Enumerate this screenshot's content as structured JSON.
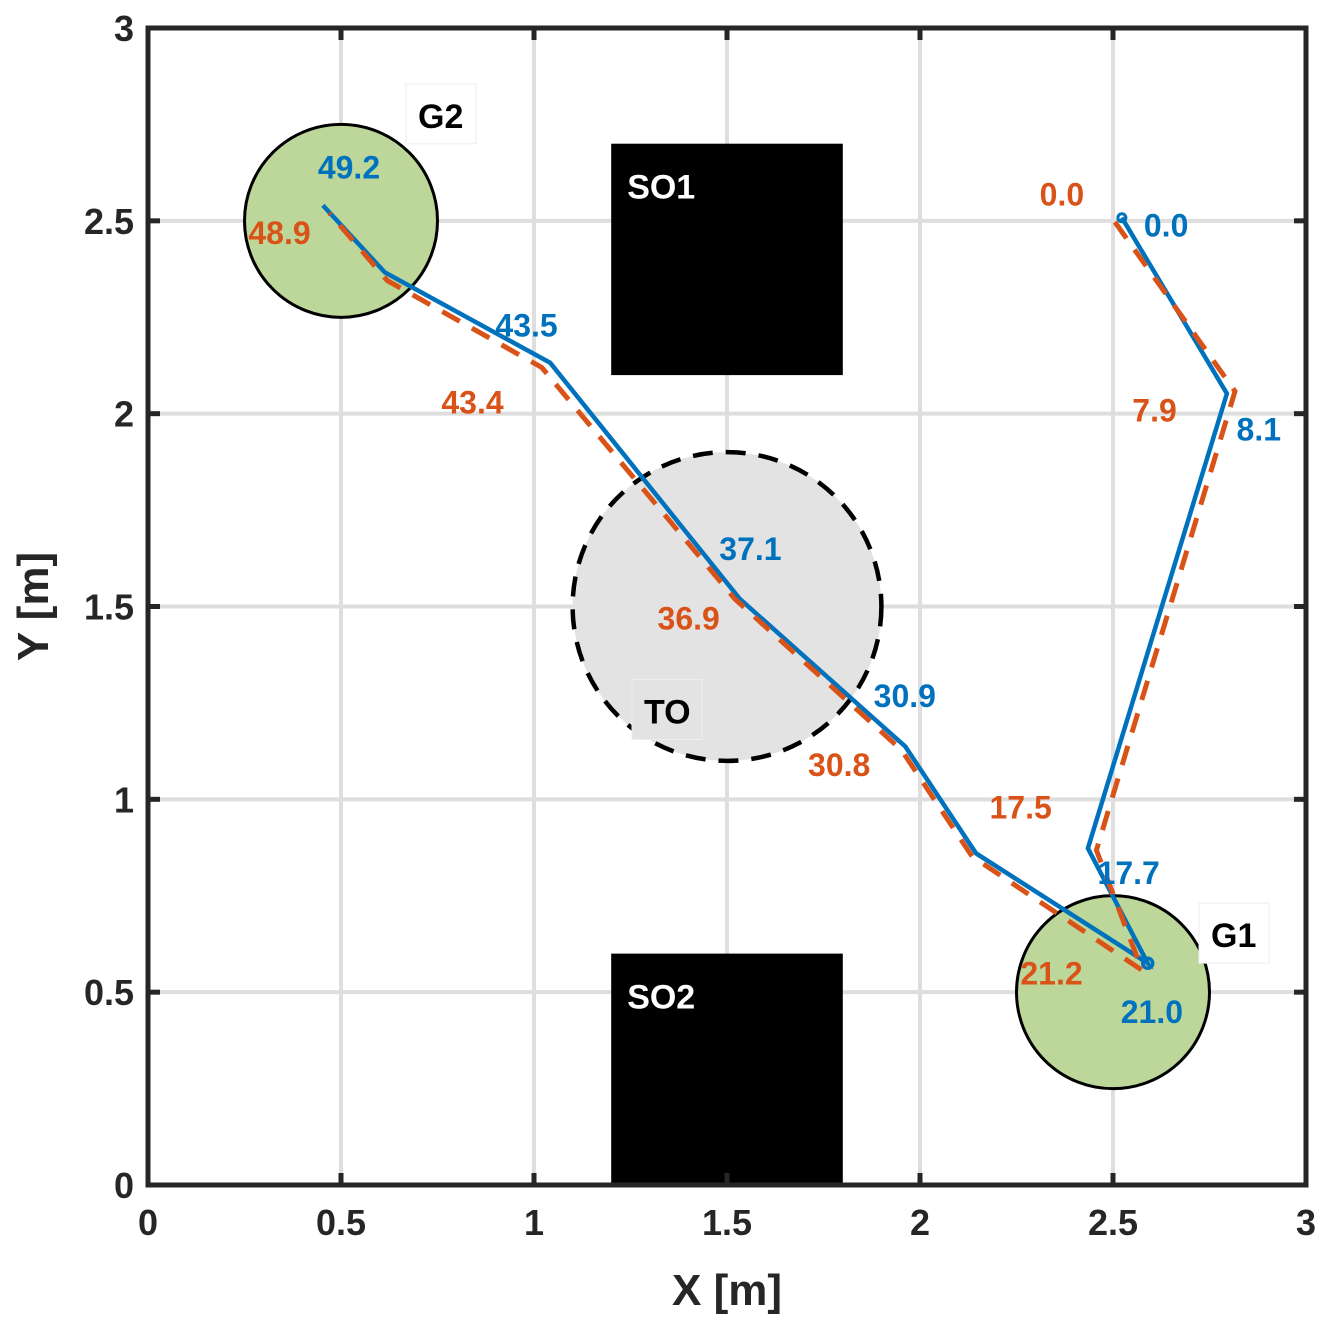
{
  "chart_data": {
    "type": "line",
    "title": "",
    "xlabel": "X [m]",
    "ylabel": "Y [m]",
    "xlim": [
      0,
      3
    ],
    "ylim": [
      0,
      3
    ],
    "grid": true,
    "xticks": [
      0,
      0.5,
      1,
      1.5,
      2,
      2.5,
      3
    ],
    "yticks": [
      0,
      0.5,
      1,
      1.5,
      2,
      2.5,
      3
    ],
    "xtick_labels": [
      "0",
      "0.5",
      "1",
      "1.5",
      "2",
      "2.5",
      "3"
    ],
    "ytick_labels": [
      "0",
      "0.5",
      "1",
      "1.5",
      "2",
      "2.5",
      "3"
    ],
    "colors": {
      "blue": "#0072BD",
      "orange": "#D95319",
      "goal_fill": "#BDD79A",
      "to_fill": "#E3E3E3",
      "obstacle": "#000000",
      "grid": "#DEDEDE",
      "axis": "#262626"
    },
    "obstacles": [
      {
        "name": "SO1",
        "type": "rect",
        "x": [
          1.2,
          1.8
        ],
        "y": [
          2.1,
          2.7
        ],
        "label": "SO1"
      },
      {
        "name": "SO2",
        "type": "rect",
        "x": [
          1.2,
          1.8
        ],
        "y": [
          0.0,
          0.6
        ],
        "label": "SO2"
      }
    ],
    "regions": [
      {
        "name": "TO",
        "type": "circle",
        "cx": 1.5,
        "cy": 1.5,
        "r": 0.4,
        "style": "dashed",
        "label": "TO"
      },
      {
        "name": "G1",
        "type": "circle",
        "cx": 2.5,
        "cy": 0.5,
        "r": 0.25,
        "style": "solid",
        "label": "G1"
      },
      {
        "name": "G2",
        "type": "circle",
        "cx": 0.5,
        "cy": 2.5,
        "r": 0.25,
        "style": "solid",
        "label": "G2"
      }
    ],
    "series": [
      {
        "name": "blue-trajectory",
        "style": "solid",
        "x": [
          2.523,
          2.795,
          2.435,
          2.59,
          2.145,
          1.962,
          1.533,
          1.042,
          0.614,
          0.453
        ],
        "y": [
          2.508,
          2.052,
          0.873,
          0.575,
          0.86,
          1.137,
          1.52,
          2.132,
          2.366,
          2.54
        ]
      },
      {
        "name": "orange-trajectory",
        "style": "dashed",
        "x": [
          2.505,
          2.816,
          2.457,
          2.575,
          2.135,
          1.952,
          1.52,
          1.02,
          0.62,
          0.47
        ],
        "y": [
          2.497,
          2.058,
          0.868,
          0.557,
          0.852,
          1.128,
          1.52,
          2.12,
          2.345,
          2.52
        ]
      }
    ],
    "annotations": [
      {
        "text": "0.0",
        "series": "blue",
        "x": 2.58,
        "y": 2.46
      },
      {
        "text": "8.1",
        "series": "blue",
        "x": 2.82,
        "y": 1.93
      },
      {
        "text": "17.7",
        "series": "blue",
        "x": 2.46,
        "y": 0.78
      },
      {
        "text": "21.0",
        "series": "blue",
        "x": 2.52,
        "y": 0.42
      },
      {
        "text": "30.9",
        "series": "blue",
        "x": 1.88,
        "y": 1.24
      },
      {
        "text": "37.1",
        "series": "blue",
        "x": 1.48,
        "y": 1.62
      },
      {
        "text": "43.5",
        "series": "blue",
        "x": 0.9,
        "y": 2.2
      },
      {
        "text": "49.2",
        "series": "blue",
        "x": 0.44,
        "y": 2.61
      },
      {
        "text": "0.0",
        "series": "orange",
        "x": 2.31,
        "y": 2.54
      },
      {
        "text": "7.9",
        "series": "orange",
        "x": 2.55,
        "y": 1.98
      },
      {
        "text": "17.5",
        "series": "orange",
        "x": 2.18,
        "y": 0.95
      },
      {
        "text": "21.2",
        "series": "orange",
        "x": 2.26,
        "y": 0.52
      },
      {
        "text": "30.8",
        "series": "orange",
        "x": 1.71,
        "y": 1.06
      },
      {
        "text": "36.9",
        "series": "orange",
        "x": 1.32,
        "y": 1.44
      },
      {
        "text": "43.4",
        "series": "orange",
        "x": 0.76,
        "y": 2.0
      },
      {
        "text": "48.9",
        "series": "orange",
        "x": 0.26,
        "y": 2.44
      }
    ]
  }
}
